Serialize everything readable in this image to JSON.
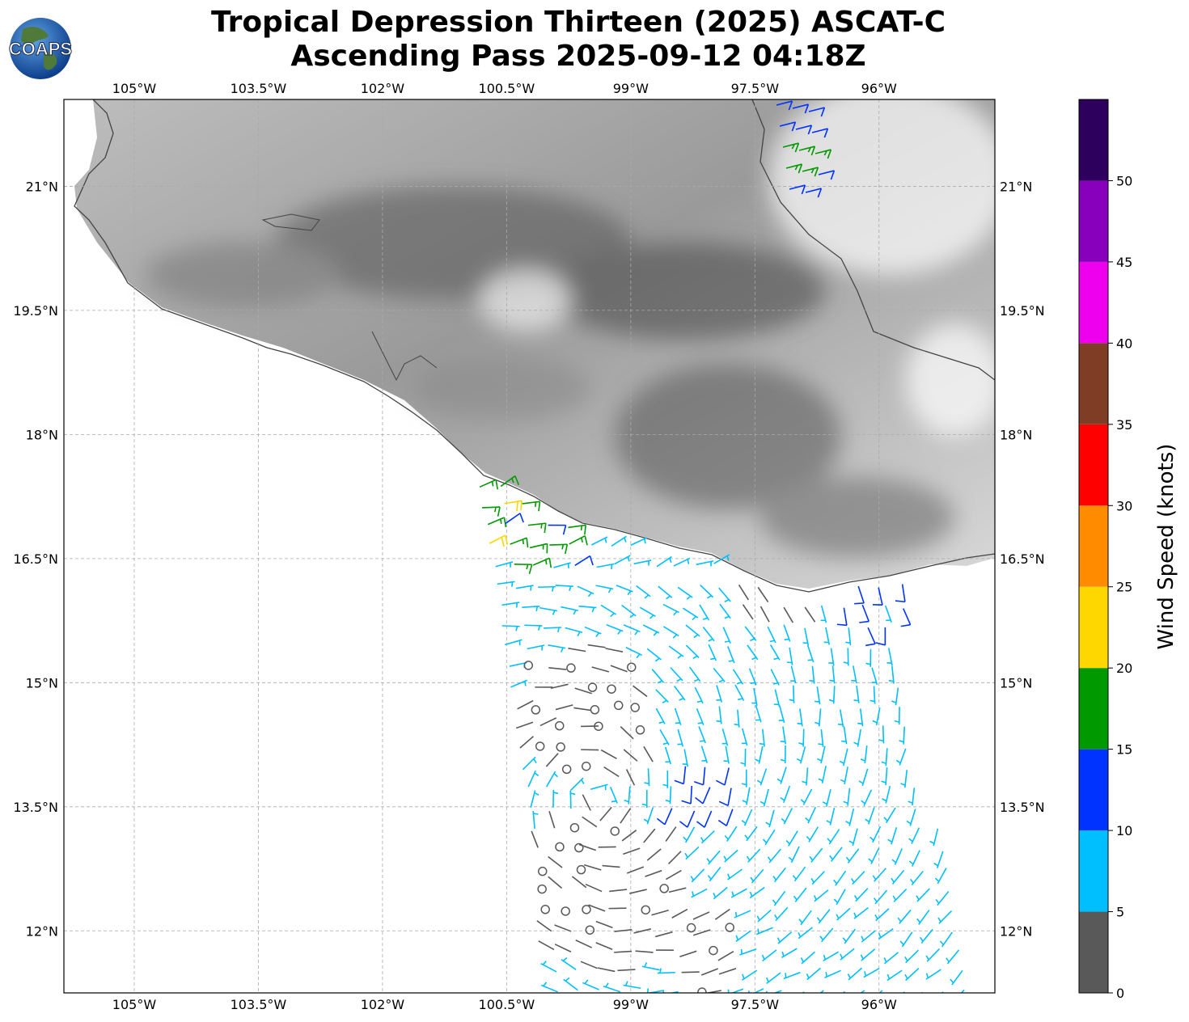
{
  "title": {
    "line1": "Tropical Depression Thirteen (2025) ASCAT-C",
    "line2": "Ascending Pass 2025-09-12 04:18Z"
  },
  "logo": {
    "text": "COAPS",
    "icon": "globe-icon"
  },
  "map": {
    "lon_range": [
      -105.85,
      -94.6
    ],
    "lat_range": [
      11.25,
      22.05
    ],
    "lon_ticks": [
      "105°W",
      "103.5°W",
      "102°W",
      "100.5°W",
      "99°W",
      "97.5°W",
      "96°W"
    ],
    "lat_ticks": [
      "21°N",
      "19.5°N",
      "18°N",
      "16.5°N",
      "15°N",
      "13.5°N",
      "12°N"
    ],
    "grid": true,
    "land_shading": "grayscale elevation",
    "coastline_color": "#444444"
  },
  "colorbar": {
    "label": "Wind Speed (knots)",
    "ticks": [
      "0",
      "5",
      "10",
      "15",
      "20",
      "25",
      "30",
      "35",
      "40",
      "45",
      "50"
    ],
    "bins": [
      {
        "min": 0,
        "max": 5,
        "color": "#595959"
      },
      {
        "min": 5,
        "max": 10,
        "color": "#00bfff"
      },
      {
        "min": 10,
        "max": 15,
        "color": "#0033ff"
      },
      {
        "min": 15,
        "max": 20,
        "color": "#009900"
      },
      {
        "min": 20,
        "max": 25,
        "color": "#ffd700"
      },
      {
        "min": 25,
        "max": 30,
        "color": "#ff8c00"
      },
      {
        "min": 30,
        "max": 35,
        "color": "#ff0000"
      },
      {
        "min": 35,
        "max": 40,
        "color": "#803d26"
      },
      {
        "min": 40,
        "max": 45,
        "color": "#ee00ee"
      },
      {
        "min": 45,
        "max": 50,
        "color": "#8800bb"
      },
      {
        "min": 50,
        "max": 55,
        "color": "#2e005e"
      }
    ]
  }
}
